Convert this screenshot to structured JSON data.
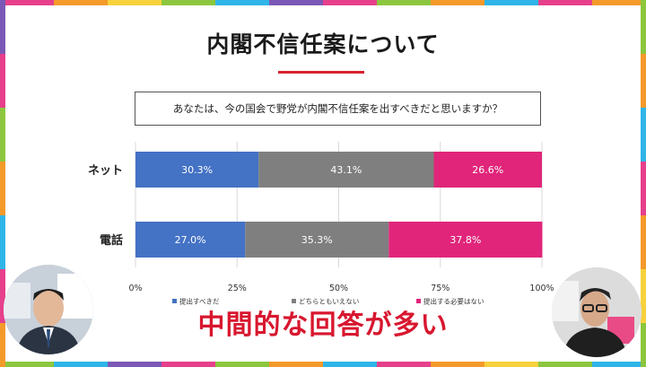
{
  "title": "内閣不信任案について",
  "question": "あなたは、今の国会で野党が内閣不信任案を出すべきだと思いますか？",
  "caption": "中間的な回答が多い",
  "colors": {
    "frame": [
      "#e63f8b",
      "#f39a2a",
      "#f7d23c",
      "#8cc63e",
      "#2fb5e8",
      "#7b58b5",
      "#e63f8b",
      "#8cc63e",
      "#f39a2a",
      "#2fb5e8"
    ],
    "title_line": "#d9232e",
    "caption": "#d8172f"
  },
  "chart_data": {
    "type": "bar",
    "orientation": "horizontal-stacked-100",
    "categories": [
      "ネット",
      "電話"
    ],
    "series": [
      {
        "name": "提出すべきだ",
        "color": "#4472c4",
        "values": [
          30.3,
          27.0
        ],
        "labels": [
          "30.3%",
          "27.0%"
        ]
      },
      {
        "name": "どちらともいえない",
        "color": "#7f7f7f",
        "values": [
          43.1,
          35.3
        ],
        "labels": [
          "43.1%",
          "35.3%"
        ]
      },
      {
        "name": "提出する必要はない",
        "color": "#e0257a",
        "values": [
          26.6,
          37.8
        ],
        "labels": [
          "26.6%",
          "37.8%"
        ]
      }
    ],
    "xticks": [
      "0%",
      "25%",
      "50%",
      "75%",
      "100%"
    ],
    "xlim": [
      0,
      100
    ],
    "legend_position": "bottom"
  }
}
